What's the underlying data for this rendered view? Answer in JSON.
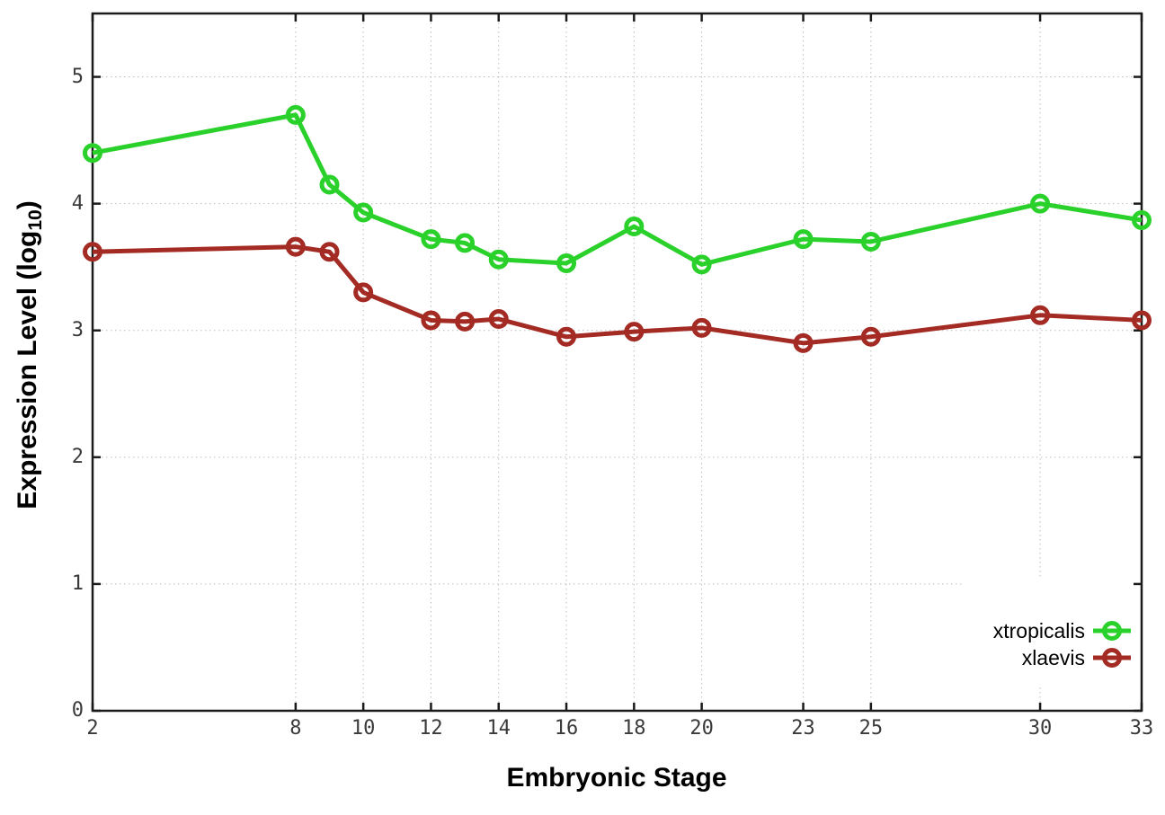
{
  "ui": {
    "yaxis_title_main": "Expression Level (log",
    "yaxis_title_sub": "10",
    "yaxis_title_close": ")",
    "xaxis_title": "Embryonic Stage"
  },
  "chart_data": {
    "type": "line",
    "title": "",
    "xlabel": "Embryonic Stage",
    "ylabel": "Expression Level (log10)",
    "x": [
      2,
      8,
      9,
      10,
      12,
      13,
      14,
      16,
      18,
      20,
      23,
      25,
      30,
      33
    ],
    "series": [
      {
        "name": "xtropicalis",
        "color": "#2bd12b",
        "values": [
          4.4,
          4.7,
          4.15,
          3.93,
          3.72,
          3.69,
          3.56,
          3.53,
          3.82,
          3.52,
          3.72,
          3.7,
          4.0,
          3.87
        ]
      },
      {
        "name": "xlaevis",
        "color": "#a32b24",
        "values": [
          3.62,
          3.66,
          3.62,
          3.3,
          3.08,
          3.07,
          3.09,
          2.95,
          2.99,
          3.02,
          2.9,
          2.95,
          3.12,
          3.08
        ]
      }
    ],
    "xtick_values": [
      2,
      8,
      10,
      12,
      14,
      16,
      18,
      20,
      23,
      25,
      30,
      33
    ],
    "xtick_labels": [
      "2",
      "8",
      "10",
      "12",
      "14",
      "16",
      "18",
      "20",
      "23",
      "25",
      "30",
      "33"
    ],
    "ytick_values": [
      0,
      1,
      2,
      3,
      4,
      5
    ],
    "ytick_labels": [
      "0",
      "1",
      "2",
      "3",
      "4",
      "5"
    ],
    "xlim": [
      2,
      33
    ],
    "ylim": [
      0,
      5.5
    ],
    "grid": true,
    "legend_position": "bottom-right",
    "marker": "open-circle",
    "colors": {
      "grid": "#bdbdbd",
      "border": "#1a1a1a",
      "tick_text": "#3a3a3a",
      "title_text": "#000000",
      "background": "#ffffff"
    }
  }
}
